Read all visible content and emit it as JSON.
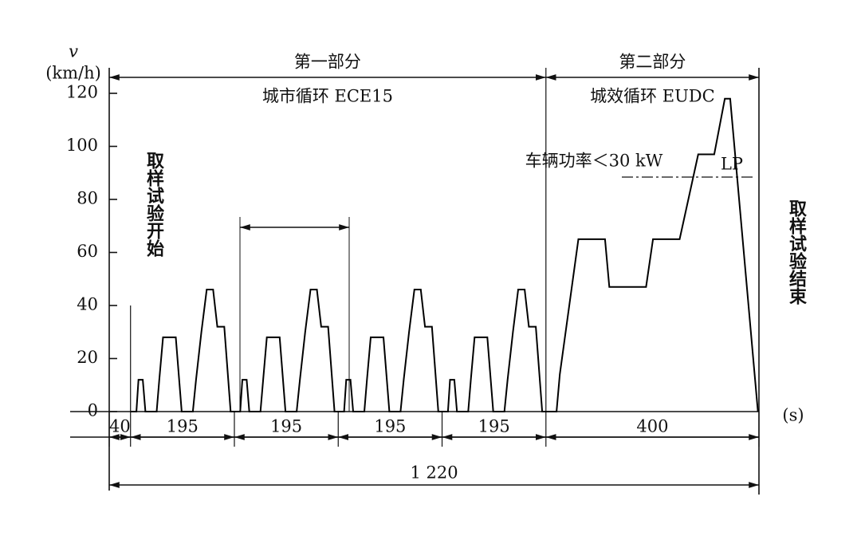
{
  "chart_data": {
    "type": "line",
    "y_label_symbol": "v",
    "y_label_unit": "(km/h)",
    "x_unit": "(s)",
    "parts": [
      "第一部分",
      "第二部分"
    ],
    "part_titles": [
      "城市循环 ECE15",
      "城效循环 EUDC"
    ],
    "power_note": "车辆功率＜30 kW",
    "lp_label": "LP",
    "start_label": "取样试验开始",
    "end_label": "取样试验结束",
    "segments": [
      40,
      195,
      195,
      195,
      195,
      400
    ],
    "total": {
      "value": 1220,
      "label": "1 220"
    },
    "xlim": [
      0,
      1220
    ],
    "ylim": [
      0,
      120
    ],
    "yticks": [
      0,
      20,
      40,
      60,
      80,
      100,
      120
    ],
    "color": "#000000",
    "x": [
      40,
      51,
      55,
      63,
      68,
      89,
      94,
      101,
      125,
      136,
      157,
      163,
      173,
      183,
      195,
      203,
      216,
      228,
      235,
      246,
      250,
      258,
      263,
      284,
      289,
      296,
      320,
      331,
      352,
      358,
      368,
      378,
      390,
      398,
      411,
      423,
      430,
      441,
      445,
      453,
      458,
      479,
      484,
      491,
      515,
      526,
      547,
      553,
      563,
      573,
      585,
      593,
      606,
      618,
      625,
      636,
      640,
      648,
      653,
      674,
      679,
      686,
      710,
      721,
      742,
      748,
      758,
      768,
      780,
      788,
      801,
      813,
      840,
      846,
      881,
      931,
      939,
      1008,
      1021,
      1071,
      1106,
      1136,
      1156,
      1166,
      1218
    ],
    "values": [
      0,
      0,
      12,
      12,
      0,
      0,
      12,
      28,
      28,
      0,
      0,
      12,
      30,
      46,
      46,
      32,
      32,
      0,
      0,
      0,
      12,
      12,
      0,
      0,
      12,
      28,
      28,
      0,
      0,
      12,
      30,
      46,
      46,
      32,
      32,
      0,
      0,
      0,
      12,
      12,
      0,
      0,
      12,
      28,
      28,
      0,
      0,
      12,
      30,
      46,
      46,
      32,
      32,
      0,
      0,
      0,
      12,
      12,
      0,
      0,
      12,
      28,
      28,
      0,
      0,
      12,
      30,
      46,
      46,
      32,
      32,
      0,
      0,
      14,
      65,
      65,
      47,
      47,
      65,
      65,
      97,
      97,
      118,
      118,
      0
    ]
  }
}
